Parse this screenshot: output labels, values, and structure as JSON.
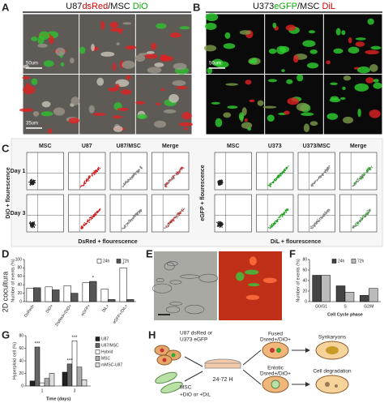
{
  "panels": {
    "A": {
      "letter": "A",
      "title": [
        "U87",
        "dsRed",
        "/MSC ",
        "DiO"
      ],
      "scale_bars": [
        "50um",
        "35um"
      ]
    },
    "B": {
      "letter": "B",
      "title": [
        "U373",
        "eGFP",
        "/MSC ",
        "DiL"
      ],
      "scale_bars": [
        "50um"
      ]
    },
    "C": {
      "letter": "C",
      "left": {
        "headers": [
          "MSC",
          "U87",
          "U87/MSC",
          "Merge"
        ],
        "rows": [
          "Day 1",
          "Day 3"
        ],
        "y_label": "DiO + flourescence",
        "x_label": "DsRed + flourescence"
      },
      "right": {
        "headers": [
          "MSC",
          "U373",
          "U373/MSC",
          "Merge"
        ],
        "y_label": "eGFP + flourescence",
        "x_label": "DiL + flourescence"
      }
    },
    "D": {
      "letter": "D",
      "side_label": "2D cocultura"
    },
    "E": {
      "letter": "E"
    },
    "F": {
      "letter": "F"
    },
    "G": {
      "letter": "G"
    },
    "H": {
      "letter": "H",
      "source_a": [
        "U87 dsRed or",
        "U373 eGFP"
      ],
      "source_b": [
        "MSC",
        "+DiO or +DiL"
      ],
      "time": "24-72 H",
      "fused": [
        "Fused",
        "Dsred+/DiO+"
      ],
      "entotic": [
        "Entotic",
        "Dsred+/DiO+"
      ],
      "outcome_1": "Synkaryons",
      "outcome_2": "Cell degradation"
    }
  },
  "chart_data": [
    {
      "type": "bar",
      "y_label": "Number of events (%)",
      "categories": [
        "DsRed+",
        "DiO+",
        "DsRed+/DiO+",
        "eGFP+",
        "DiL+",
        "eGFP+/DiL+"
      ],
      "series": [
        {
          "name": "24h",
          "color": "#ffffff",
          "values": [
            32,
            35,
            38,
            45,
            30,
            80
          ]
        },
        {
          "name": "72h",
          "color": "#555555",
          "values": [
            33,
            28,
            20,
            48,
            5,
            5
          ]
        }
      ],
      "ylim": [
        0,
        100
      ],
      "yticks": [
        0,
        20,
        40,
        60,
        80,
        100
      ],
      "annotations": [
        "*",
        "*"
      ]
    },
    {
      "type": "bar",
      "y_label": "Number of events (%)",
      "x_label": "Cell Cycle phase",
      "categories": [
        "G0/G1",
        "S",
        "G2/M"
      ],
      "series": [
        {
          "name": "24h",
          "color": "#444444",
          "values": [
            50,
            30,
            12
          ]
        },
        {
          "name": "72h",
          "color": "#bbbbbb",
          "values": [
            50,
            18,
            25
          ]
        }
      ],
      "ylim": [
        0,
        80
      ],
      "yticks": [
        0,
        20,
        40,
        60,
        80
      ]
    },
    {
      "type": "bar",
      "y_label": "Hyperploid cell (%)",
      "x_label": "Time (days)",
      "categories": [
        "1",
        "3"
      ],
      "series": [
        {
          "name": "U87",
          "color": "#222222",
          "values": [
            8,
            22
          ]
        },
        {
          "name": "U87/MSC",
          "color": "#666666",
          "values": [
            62,
            35
          ]
        },
        {
          "name": "Hybrid",
          "color": "#ffffff",
          "values": [
            5,
            72
          ]
        },
        {
          "name": "MSC",
          "color": "#aaaaaa",
          "values": [
            12,
            30
          ]
        },
        {
          "name": "mMSC-U87",
          "color": "#dddddd",
          "values": [
            20,
            10
          ]
        }
      ],
      "ylim": [
        0,
        80
      ],
      "yticks": [
        0,
        20,
        40,
        60,
        80
      ],
      "annotations": [
        "***",
        "***",
        "***"
      ]
    }
  ]
}
